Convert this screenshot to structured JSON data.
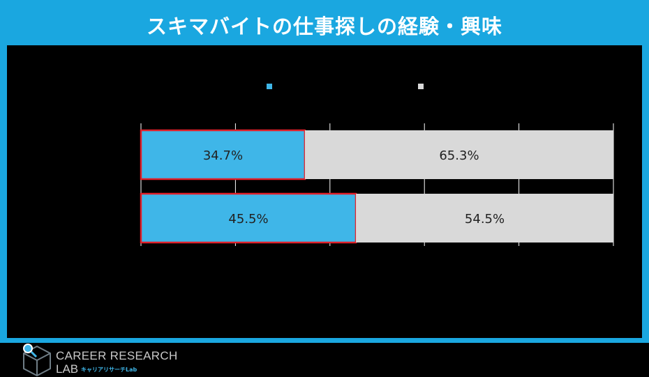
{
  "title": "スキマバイトの仕事探しの経験・興味",
  "colors": {
    "frame": "#1aa7e0",
    "series_a": "#3fb6e8",
    "series_b": "#d9d9d9",
    "highlight": "#e0202a",
    "grid": "#ffffff"
  },
  "chart_data": {
    "type": "bar",
    "orientation": "horizontal",
    "stacked": true,
    "percent_stacked": true,
    "categories": [
      "",
      ""
    ],
    "series": [
      {
        "values": [
          34.7,
          45.5
        ],
        "labels": [
          "34.7%",
          "45.5%"
        ]
      },
      {
        "values": [
          65.3,
          54.5
        ],
        "labels": [
          "65.3%",
          "54.5%"
        ]
      }
    ],
    "xlim": [
      0,
      100
    ],
    "grid": true,
    "legend": "top",
    "highlighted_series": 0
  },
  "logo": {
    "line1": "CAREER RESEARCH",
    "line2": "LAB",
    "sub": "キャリアリサーチLab"
  }
}
